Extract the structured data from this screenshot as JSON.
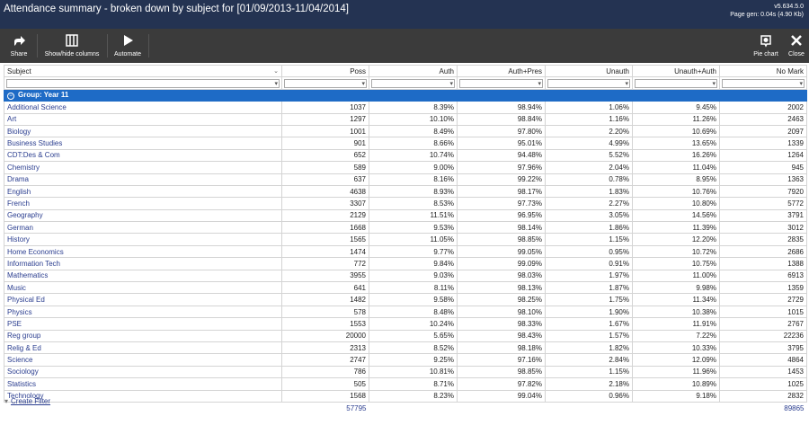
{
  "window": {
    "title": "Attendance summary - broken down by subject for [01/09/2013-11/04/2014]",
    "version": "v5.634.5.0",
    "page_gen": "Page gen: 0.04s (4.90 Kb)"
  },
  "toolbar": {
    "share": "Share",
    "show_hide": "Show/hide columns",
    "automate": "Automate",
    "pie_chart": "Pie chart",
    "close": "Close"
  },
  "table": {
    "headers": [
      "Subject",
      "Poss",
      "Auth",
      "Auth+Pres",
      "Unauth",
      "Unauth+Auth",
      "No Mark"
    ],
    "group_label": "Group: Year 11",
    "rows": [
      [
        "Additional Science",
        "1037",
        "8.39%",
        "98.94%",
        "1.06%",
        "9.45%",
        "2002"
      ],
      [
        "Art",
        "1297",
        "10.10%",
        "98.84%",
        "1.16%",
        "11.26%",
        "2463"
      ],
      [
        "Biology",
        "1001",
        "8.49%",
        "97.80%",
        "2.20%",
        "10.69%",
        "2097"
      ],
      [
        "Business Studies",
        "901",
        "8.66%",
        "95.01%",
        "4.99%",
        "13.65%",
        "1339"
      ],
      [
        "CDT:Des & Com",
        "652",
        "10.74%",
        "94.48%",
        "5.52%",
        "16.26%",
        "1264"
      ],
      [
        "Chemistry",
        "589",
        "9.00%",
        "97.96%",
        "2.04%",
        "11.04%",
        "945"
      ],
      [
        "Drama",
        "637",
        "8.16%",
        "99.22%",
        "0.78%",
        "8.95%",
        "1363"
      ],
      [
        "English",
        "4638",
        "8.93%",
        "98.17%",
        "1.83%",
        "10.76%",
        "7920"
      ],
      [
        "French",
        "3307",
        "8.53%",
        "97.73%",
        "2.27%",
        "10.80%",
        "5772"
      ],
      [
        "Geography",
        "2129",
        "11.51%",
        "96.95%",
        "3.05%",
        "14.56%",
        "3791"
      ],
      [
        "German",
        "1668",
        "9.53%",
        "98.14%",
        "1.86%",
        "11.39%",
        "3012"
      ],
      [
        "History",
        "1565",
        "11.05%",
        "98.85%",
        "1.15%",
        "12.20%",
        "2835"
      ],
      [
        "Home Economics",
        "1474",
        "9.77%",
        "99.05%",
        "0.95%",
        "10.72%",
        "2686"
      ],
      [
        "Information Tech",
        "772",
        "9.84%",
        "99.09%",
        "0.91%",
        "10.75%",
        "1388"
      ],
      [
        "Mathematics",
        "3955",
        "9.03%",
        "98.03%",
        "1.97%",
        "11.00%",
        "6913"
      ],
      [
        "Music",
        "641",
        "8.11%",
        "98.13%",
        "1.87%",
        "9.98%",
        "1359"
      ],
      [
        "Physical Ed",
        "1482",
        "9.58%",
        "98.25%",
        "1.75%",
        "11.34%",
        "2729"
      ],
      [
        "Physics",
        "578",
        "8.48%",
        "98.10%",
        "1.90%",
        "10.38%",
        "1015"
      ],
      [
        "PSE",
        "1553",
        "10.24%",
        "98.33%",
        "1.67%",
        "11.91%",
        "2767"
      ],
      [
        "Reg group",
        "20000",
        "5.65%",
        "98.43%",
        "1.57%",
        "7.22%",
        "22236"
      ],
      [
        "Relig & Ed",
        "2313",
        "8.52%",
        "98.18%",
        "1.82%",
        "10.33%",
        "3795"
      ],
      [
        "Science",
        "2747",
        "9.25%",
        "97.16%",
        "2.84%",
        "12.09%",
        "4864"
      ],
      [
        "Sociology",
        "786",
        "10.81%",
        "98.85%",
        "1.15%",
        "11.96%",
        "1453"
      ],
      [
        "Statistics",
        "505",
        "8.71%",
        "97.82%",
        "2.18%",
        "10.89%",
        "1025"
      ],
      [
        "Technology",
        "1568",
        "8.23%",
        "99.04%",
        "0.96%",
        "9.18%",
        "2832"
      ]
    ],
    "totals": {
      "poss": "57795",
      "no_mark": "89865"
    }
  },
  "footer": {
    "create_filter": "Create Filter"
  }
}
